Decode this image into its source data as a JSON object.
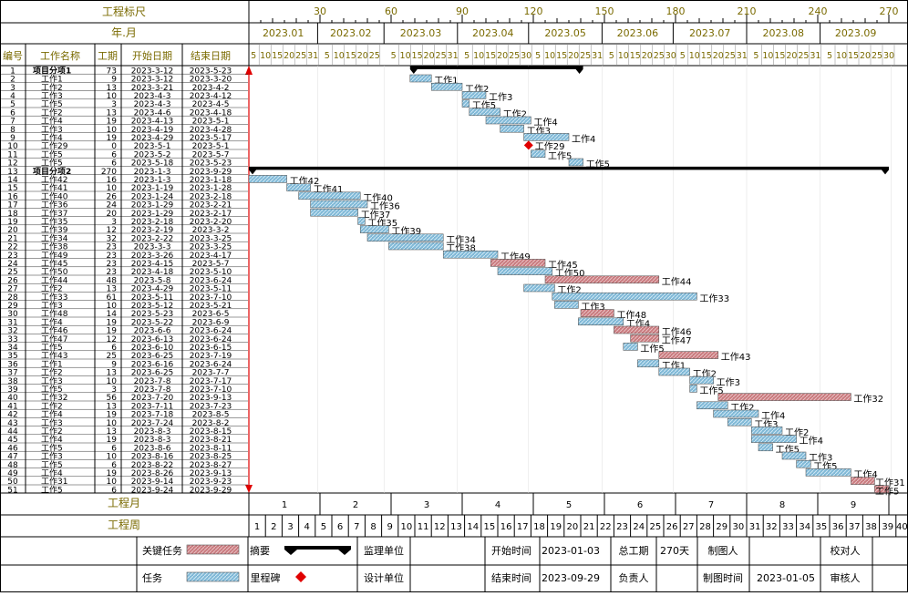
{
  "header": {
    "scale_title": "工程标尺",
    "yearmonth_title": "年.月",
    "col_headers": [
      "编号",
      "工作名称",
      "工期",
      "开始日期",
      "结束日期"
    ],
    "scale_ticks": [
      "30",
      "60",
      "90",
      "120",
      "150",
      "180",
      "210",
      "240",
      "270"
    ],
    "months": [
      "2023.01",
      "2023.02",
      "2023.03",
      "2023.04",
      "2023.05",
      "2023.06",
      "2023.07",
      "2023.08",
      "2023.09"
    ]
  },
  "chart_data": {
    "type": "gantt",
    "project_start": "2023-01-03",
    "project_end": "2023-09-29",
    "tasks": [
      {
        "id": "1",
        "name": "项目分项1",
        "duration": 73,
        "start": "2023-3-12",
        "end": "2023-5-23",
        "kind": "summary"
      },
      {
        "id": "2",
        "name": "工作1",
        "duration": 9,
        "start": "2023-3-12",
        "end": "2023-3-20",
        "kind": "task"
      },
      {
        "id": "3",
        "name": "工作2",
        "duration": 13,
        "start": "2023-3-21",
        "end": "2023-4-2",
        "kind": "task"
      },
      {
        "id": "4",
        "name": "工作3",
        "duration": 10,
        "start": "2023-4-3",
        "end": "2023-4-12",
        "kind": "task"
      },
      {
        "id": "5",
        "name": "工作5",
        "duration": 3,
        "start": "2023-4-3",
        "end": "2023-4-5",
        "kind": "task"
      },
      {
        "id": "6",
        "name": "工作2",
        "duration": 13,
        "start": "2023-4-6",
        "end": "2023-4-18",
        "kind": "task"
      },
      {
        "id": "7",
        "name": "工作4",
        "duration": 19,
        "start": "2023-4-13",
        "end": "2023-5-1",
        "kind": "task"
      },
      {
        "id": "8",
        "name": "工作3",
        "duration": 10,
        "start": "2023-4-19",
        "end": "2023-4-28",
        "kind": "task"
      },
      {
        "id": "9",
        "name": "工作4",
        "duration": 19,
        "start": "2023-4-29",
        "end": "2023-5-17",
        "kind": "task"
      },
      {
        "id": "10",
        "name": "工作29",
        "duration": 0,
        "start": "2023-5-1",
        "end": "2023-5-1",
        "kind": "milestone"
      },
      {
        "id": "11",
        "name": "工作5",
        "duration": 6,
        "start": "2023-5-2",
        "end": "2023-5-7",
        "kind": "task"
      },
      {
        "id": "12",
        "name": "工作5",
        "duration": 6,
        "start": "2023-5-18",
        "end": "2023-5-23",
        "kind": "task"
      },
      {
        "id": "13",
        "name": "项目分项2",
        "duration": 270,
        "start": "2023-1-3",
        "end": "2023-9-29",
        "kind": "summary"
      },
      {
        "id": "14",
        "name": "工作42",
        "duration": 16,
        "start": "2023-1-3",
        "end": "2023-1-18",
        "kind": "task"
      },
      {
        "id": "15",
        "name": "工作41",
        "duration": 10,
        "start": "2023-1-19",
        "end": "2023-1-28",
        "kind": "task"
      },
      {
        "id": "16",
        "name": "工作40",
        "duration": 26,
        "start": "2023-1-24",
        "end": "2023-2-18",
        "kind": "task"
      },
      {
        "id": "17",
        "name": "工作36",
        "duration": 24,
        "start": "2023-1-29",
        "end": "2023-2-21",
        "kind": "task"
      },
      {
        "id": "18",
        "name": "工作37",
        "duration": 20,
        "start": "2023-1-29",
        "end": "2023-2-17",
        "kind": "task"
      },
      {
        "id": "19",
        "name": "工作35",
        "duration": 3,
        "start": "2023-2-18",
        "end": "2023-2-20",
        "kind": "task"
      },
      {
        "id": "20",
        "name": "工作39",
        "duration": 12,
        "start": "2023-2-19",
        "end": "2023-3-2",
        "kind": "task"
      },
      {
        "id": "21",
        "name": "工作34",
        "duration": 32,
        "start": "2023-2-22",
        "end": "2023-3-25",
        "kind": "task"
      },
      {
        "id": "22",
        "name": "工作38",
        "duration": 23,
        "start": "2023-3-3",
        "end": "2023-3-25",
        "kind": "task"
      },
      {
        "id": "23",
        "name": "工作49",
        "duration": 23,
        "start": "2023-3-26",
        "end": "2023-4-17",
        "kind": "task"
      },
      {
        "id": "24",
        "name": "工作45",
        "duration": 23,
        "start": "2023-4-15",
        "end": "2023-5-7",
        "kind": "critical"
      },
      {
        "id": "25",
        "name": "工作50",
        "duration": 23,
        "start": "2023-4-18",
        "end": "2023-5-10",
        "kind": "task"
      },
      {
        "id": "26",
        "name": "工作44",
        "duration": 48,
        "start": "2023-5-8",
        "end": "2023-6-24",
        "kind": "critical"
      },
      {
        "id": "27",
        "name": "工作2",
        "duration": 13,
        "start": "2023-4-29",
        "end": "2023-5-11",
        "kind": "task"
      },
      {
        "id": "28",
        "name": "工作33",
        "duration": 61,
        "start": "2023-5-11",
        "end": "2023-7-10",
        "kind": "task"
      },
      {
        "id": "29",
        "name": "工作3",
        "duration": 10,
        "start": "2023-5-12",
        "end": "2023-5-21",
        "kind": "task"
      },
      {
        "id": "30",
        "name": "工作48",
        "duration": 14,
        "start": "2023-5-23",
        "end": "2023-6-5",
        "kind": "critical"
      },
      {
        "id": "31",
        "name": "工作4",
        "duration": 19,
        "start": "2023-5-22",
        "end": "2023-6-9",
        "kind": "task"
      },
      {
        "id": "32",
        "name": "工作46",
        "duration": 19,
        "start": "2023-6-6",
        "end": "2023-6-24",
        "kind": "critical"
      },
      {
        "id": "33",
        "name": "工作47",
        "duration": 12,
        "start": "2023-6-13",
        "end": "2023-6-24",
        "kind": "critical"
      },
      {
        "id": "34",
        "name": "工作5",
        "duration": 6,
        "start": "2023-6-10",
        "end": "2023-6-15",
        "kind": "task"
      },
      {
        "id": "35",
        "name": "工作43",
        "duration": 25,
        "start": "2023-6-25",
        "end": "2023-7-19",
        "kind": "critical"
      },
      {
        "id": "36",
        "name": "工作1",
        "duration": 9,
        "start": "2023-6-16",
        "end": "2023-6-24",
        "kind": "task"
      },
      {
        "id": "37",
        "name": "工作2",
        "duration": 13,
        "start": "2023-6-25",
        "end": "2023-7-7",
        "kind": "task"
      },
      {
        "id": "38",
        "name": "工作3",
        "duration": 10,
        "start": "2023-7-8",
        "end": "2023-7-17",
        "kind": "task"
      },
      {
        "id": "39",
        "name": "工作5",
        "duration": 3,
        "start": "2023-7-8",
        "end": "2023-7-10",
        "kind": "task"
      },
      {
        "id": "40",
        "name": "工作32",
        "duration": 56,
        "start": "2023-7-20",
        "end": "2023-9-13",
        "kind": "critical"
      },
      {
        "id": "41",
        "name": "工作2",
        "duration": 13,
        "start": "2023-7-11",
        "end": "2023-7-23",
        "kind": "task"
      },
      {
        "id": "42",
        "name": "工作4",
        "duration": 19,
        "start": "2023-7-18",
        "end": "2023-8-5",
        "kind": "task"
      },
      {
        "id": "43",
        "name": "工作3",
        "duration": 10,
        "start": "2023-7-24",
        "end": "2023-8-2",
        "kind": "task"
      },
      {
        "id": "44",
        "name": "工作2",
        "duration": 13,
        "start": "2023-8-3",
        "end": "2023-8-15",
        "kind": "task"
      },
      {
        "id": "45",
        "name": "工作4",
        "duration": 19,
        "start": "2023-8-3",
        "end": "2023-8-21",
        "kind": "task"
      },
      {
        "id": "46",
        "name": "工作5",
        "duration": 6,
        "start": "2023-8-6",
        "end": "2023-8-11",
        "kind": "task"
      },
      {
        "id": "47",
        "name": "工作3",
        "duration": 10,
        "start": "2023-8-16",
        "end": "2023-8-25",
        "kind": "task"
      },
      {
        "id": "48",
        "name": "工作5",
        "duration": 6,
        "start": "2023-8-22",
        "end": "2023-8-27",
        "kind": "task"
      },
      {
        "id": "49",
        "name": "工作4",
        "duration": 19,
        "start": "2023-8-26",
        "end": "2023-9-13",
        "kind": "task"
      },
      {
        "id": "50",
        "name": "工作31",
        "duration": 10,
        "start": "2023-9-14",
        "end": "2023-9-23",
        "kind": "critical"
      },
      {
        "id": "51",
        "name": "工作5",
        "duration": 6,
        "start": "2023-9-24",
        "end": "2023-9-29",
        "kind": "critical"
      }
    ]
  },
  "footer": {
    "project_month_label": "工程月",
    "project_week_label": "工程周",
    "project_months": [
      "1",
      "2",
      "3",
      "4",
      "5",
      "6",
      "7",
      "8",
      "9"
    ],
    "project_weeks": [
      "1",
      "2",
      "3",
      "4",
      "5",
      "6",
      "7",
      "8",
      "9",
      "10",
      "11",
      "12",
      "13",
      "14",
      "15",
      "16",
      "17",
      "18",
      "19",
      "20",
      "21",
      "22",
      "23",
      "24",
      "25",
      "26",
      "27",
      "28",
      "29",
      "30",
      "31",
      "32",
      "33",
      "34",
      "35",
      "36",
      "37",
      "38",
      "39",
      "40"
    ],
    "legend": {
      "critical": "关键任务",
      "summary": "摘要",
      "task": "任务",
      "milestone": "里程碑"
    },
    "info": {
      "supervisor_label": "监理单位",
      "design_label": "设计单位",
      "start_label": "开始时间",
      "start_value": "2023-01-03",
      "end_label": "结束时间",
      "end_value": "2023-09-29",
      "duration_label": "总工期",
      "duration_value": "270天",
      "manager_label": "负责人",
      "drawer_label": "制图人",
      "draw_time_label": "制图时间",
      "draw_time_value": "2023-01-05",
      "checker_label": "校对人",
      "reviewer_label": "审核人"
    }
  },
  "colors": {
    "header_text": "#7a6a00",
    "task_fill": "#7fb8d6",
    "critical_fill": "#c97a7e",
    "milestone": "#e00000",
    "summary": "#000000",
    "arrow": "#e00000"
  }
}
